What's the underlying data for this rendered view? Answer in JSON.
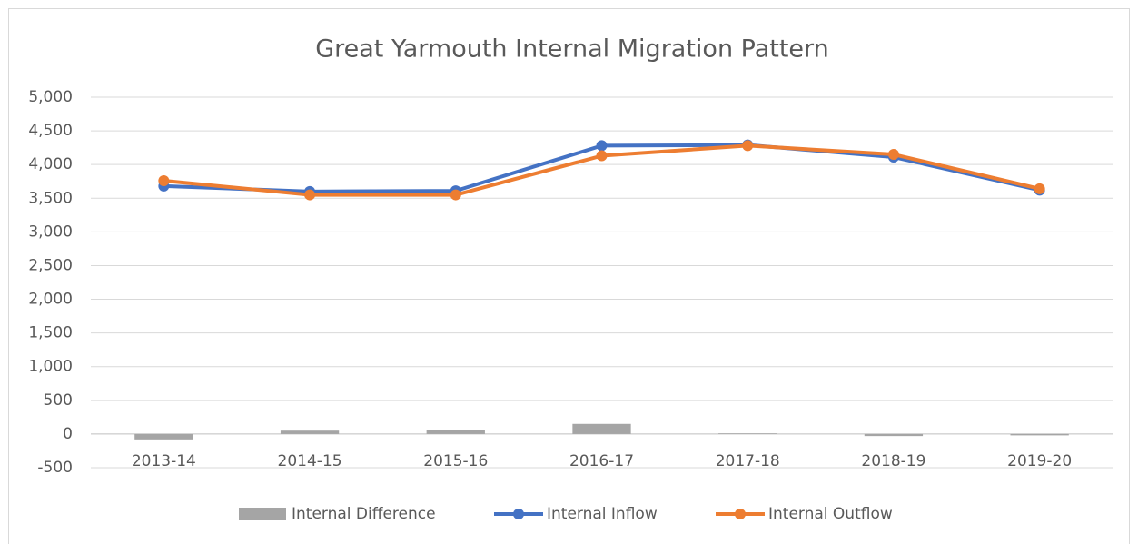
{
  "chart_data": {
    "type": "combo",
    "title": "Great Yarmouth Internal Migration Pattern",
    "categories": [
      "2013-14",
      "2014-15",
      "2015-16",
      "2016-17",
      "2017-18",
      "2018-19",
      "2019-20"
    ],
    "series": [
      {
        "name": "Internal Difference",
        "type": "bar",
        "color": "#a5a5a5",
        "values": [
          -80,
          50,
          60,
          150,
          10,
          -30,
          -20
        ]
      },
      {
        "name": "Internal Inflow",
        "type": "line",
        "color": "#4472c4",
        "values": [
          3680,
          3600,
          3610,
          4280,
          4290,
          4110,
          3620
        ]
      },
      {
        "name": "Internal Outflow",
        "type": "line",
        "color": "#ed7d31",
        "values": [
          3760,
          3550,
          3550,
          4130,
          4280,
          4150,
          3640
        ]
      }
    ],
    "ylim": [
      -500,
      5000
    ],
    "yticks": [
      -500,
      0,
      500,
      {
        "value": 1000,
        "label": "1,000"
      },
      {
        "value": 1500,
        "label": "1,500"
      },
      {
        "value": 2000,
        "label": "2,000"
      },
      {
        "value": 2500,
        "label": "2,500"
      },
      {
        "value": 3000,
        "label": "3,000"
      },
      {
        "value": 3500,
        "label": "3,500"
      },
      {
        "value": 4000,
        "label": "4,000"
      },
      {
        "value": 4500,
        "label": "4,500"
      },
      {
        "value": 5000,
        "label": "5,000"
      }
    ],
    "grid": true,
    "legend": "bottom"
  }
}
